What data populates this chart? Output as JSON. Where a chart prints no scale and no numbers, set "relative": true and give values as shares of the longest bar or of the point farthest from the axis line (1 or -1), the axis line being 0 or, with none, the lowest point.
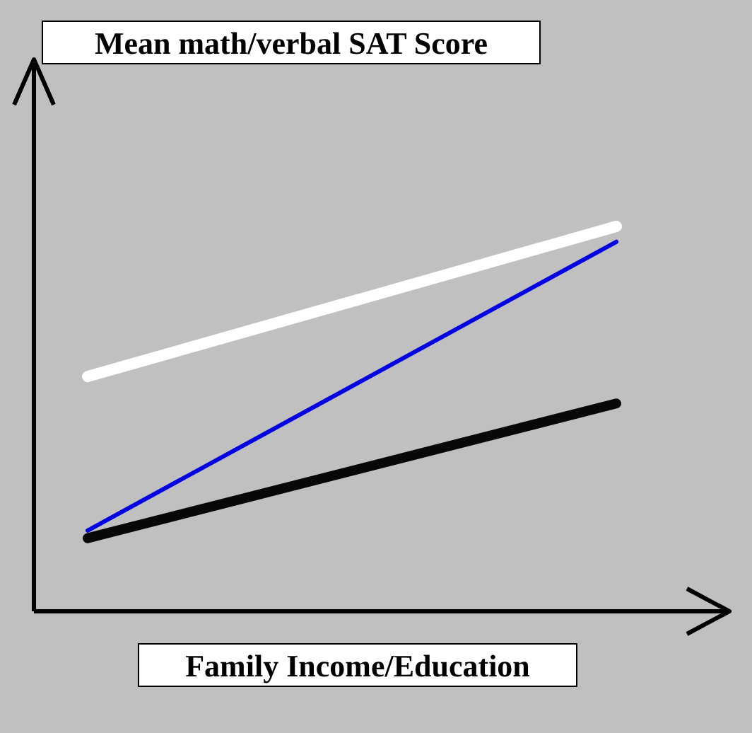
{
  "chart_data": {
    "type": "line",
    "relative": true,
    "xlabel": "Family Income/Education",
    "annotations": [
      "Mean math/verbal SAT Score"
    ],
    "categories": [
      null,
      null
    ],
    "line_style": "solid",
    "series": [
      {
        "color": "#ffffff",
        "values": [
          0.61,
          1.0
        ]
      },
      {
        "color": "#0000e0",
        "values": [
          0.21,
          0.96
        ]
      },
      {
        "color": "#080808",
        "values": [
          0.19,
          0.54
        ]
      }
    ]
  }
}
